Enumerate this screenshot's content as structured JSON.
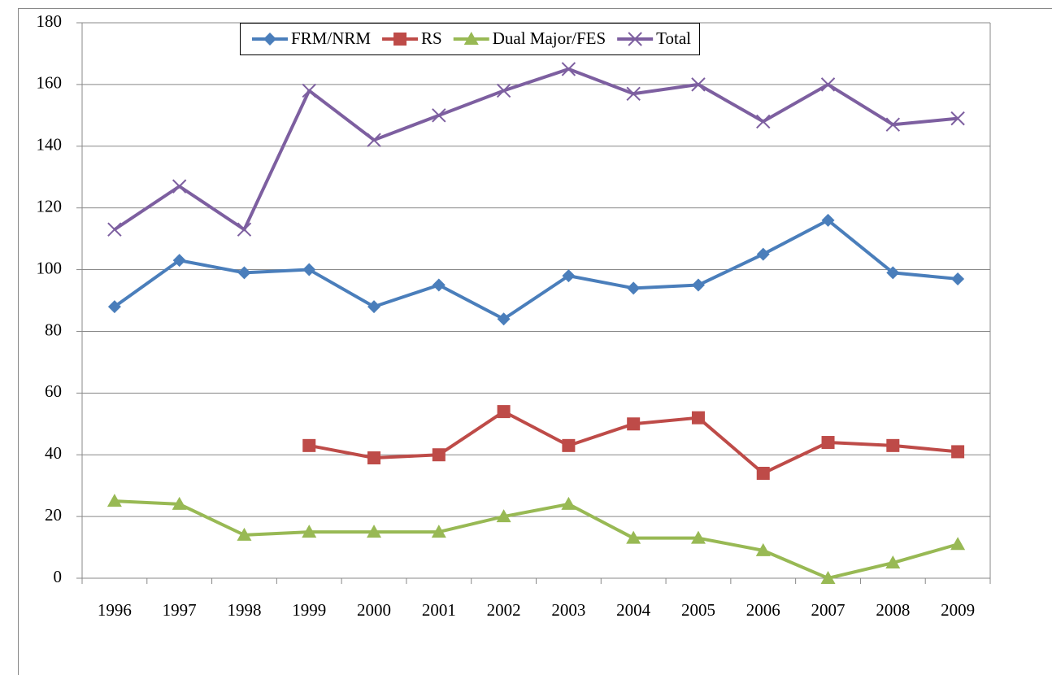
{
  "chart_data": {
    "type": "line",
    "categories": [
      "1996",
      "1997",
      "1998",
      "1999",
      "2000",
      "2001",
      "2002",
      "2003",
      "2004",
      "2005",
      "2006",
      "2007",
      "2008",
      "2009"
    ],
    "series": [
      {
        "name": "FRM/NRM",
        "color": "#4a7ebb",
        "marker": "diamond",
        "values": [
          88,
          103,
          99,
          100,
          88,
          95,
          84,
          98,
          94,
          95,
          105,
          116,
          99,
          97
        ]
      },
      {
        "name": "RS",
        "color": "#be4b48",
        "marker": "square",
        "values": [
          null,
          null,
          null,
          43,
          39,
          40,
          54,
          43,
          50,
          52,
          34,
          44,
          43,
          41
        ]
      },
      {
        "name": "Dual Major/FES",
        "color": "#98b954",
        "marker": "triangle",
        "values": [
          25,
          24,
          14,
          15,
          15,
          15,
          20,
          24,
          13,
          13,
          9,
          0,
          5,
          11
        ]
      },
      {
        "name": "Total",
        "color": "#7d5fa0",
        "marker": "x",
        "values": [
          113,
          127,
          113,
          158,
          142,
          150,
          158,
          165,
          157,
          160,
          148,
          160,
          147,
          149
        ]
      }
    ],
    "ylim": [
      0,
      180
    ],
    "yticks": [
      0,
      20,
      40,
      60,
      80,
      100,
      120,
      140,
      160,
      180
    ],
    "grid": true,
    "legend": "top"
  }
}
